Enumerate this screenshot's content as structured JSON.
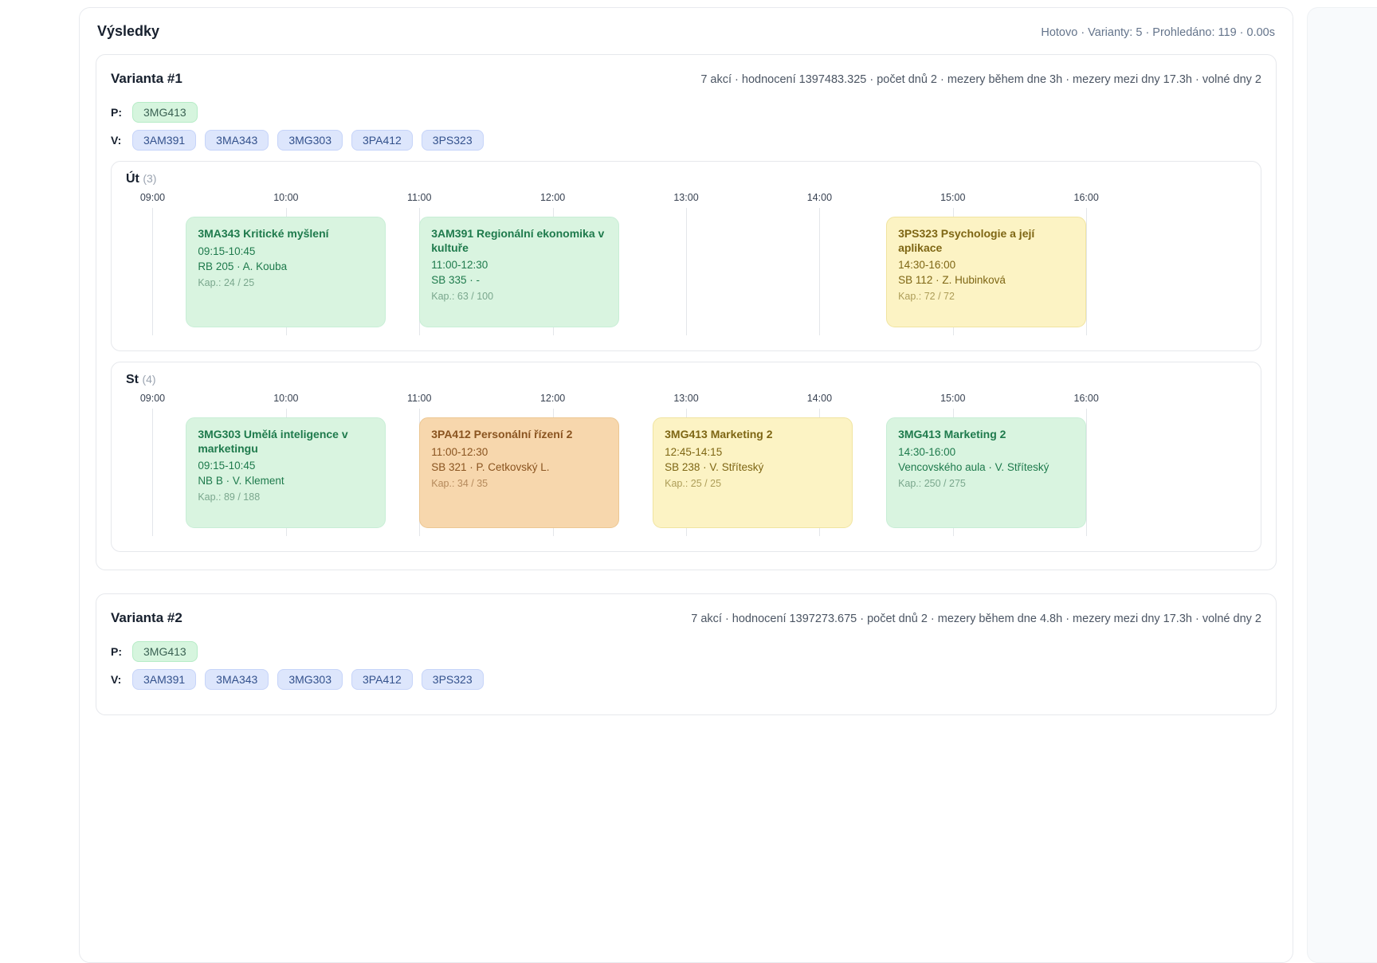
{
  "header": {
    "title": "Výsledky",
    "status": "Hotovo · Varianty: 5 · Prohledáno: 119 · 0.00s"
  },
  "labels": {
    "p": "P:",
    "v": "V:"
  },
  "timeline": {
    "hours": [
      "09:00",
      "10:00",
      "11:00",
      "12:00",
      "13:00",
      "14:00",
      "15:00",
      "16:00"
    ]
  },
  "colors": {
    "event_green_bg": "#d9f4e0",
    "event_yellow_bg": "#fcf3c4",
    "event_orange_bg": "#f7d7ad",
    "badge_primary_bg": "#d6f5de",
    "badge_elective_bg": "#dde6fc"
  },
  "variants": [
    {
      "title": "Varianta #1",
      "stats": "7 akcí · hodnocení 1397483.325 · počet dnů 2 · mezery během dne 3h · mezery mezi dny 17.3h · volné dny 2",
      "p_badges": [
        "3MG413"
      ],
      "v_badges": [
        "3AM391",
        "3MA343",
        "3MG303",
        "3PA412",
        "3PS323"
      ],
      "days": [
        {
          "name": "Út",
          "count": "(3)",
          "events": [
            {
              "title": "3MA343 Kritické myšlení",
              "time": "09:15-10:45",
              "place": "RB 205 · A. Kouba",
              "capacity": "Kap.: 24 / 25",
              "color": "green"
            },
            {
              "title": "3AM391 Regionální ekonomika v kultuře",
              "time": "11:00-12:30",
              "place": "SB 335 · -",
              "capacity": "Kap.: 63 / 100",
              "color": "green"
            },
            {
              "title": "3PS323 Psychologie a její aplikace",
              "time": "14:30-16:00",
              "place": "SB 112 · Z. Hubinková",
              "capacity": "Kap.: 72 / 72",
              "color": "yellow"
            }
          ]
        },
        {
          "name": "St",
          "count": "(4)",
          "events": [
            {
              "title": "3MG303 Umělá inteligence v marketingu",
              "time": "09:15-10:45",
              "place": "NB B · V. Klement",
              "capacity": "Kap.: 89 / 188",
              "color": "green"
            },
            {
              "title": "3PA412 Personální řízení 2",
              "time": "11:00-12:30",
              "place": "SB 321 · P. Cetkovský L.",
              "capacity": "Kap.: 34 / 35",
              "color": "orange"
            },
            {
              "title": "3MG413 Marketing 2",
              "time": "12:45-14:15",
              "place": "SB 238 · V. Stříteský",
              "capacity": "Kap.: 25 / 25",
              "color": "yellow"
            },
            {
              "title": "3MG413 Marketing 2",
              "time": "14:30-16:00",
              "place": "Vencovského aula · V. Stříteský",
              "capacity": "Kap.: 250 / 275",
              "color": "green"
            }
          ]
        }
      ]
    },
    {
      "title": "Varianta #2",
      "stats": "7 akcí · hodnocení 1397273.675 · počet dnů 2 · mezery během dne 4.8h · mezery mezi dny 17.3h · volné dny 2",
      "p_badges": [
        "3MG413"
      ],
      "v_badges": [
        "3AM391",
        "3MA343",
        "3MG303",
        "3PA412",
        "3PS323"
      ]
    }
  ]
}
